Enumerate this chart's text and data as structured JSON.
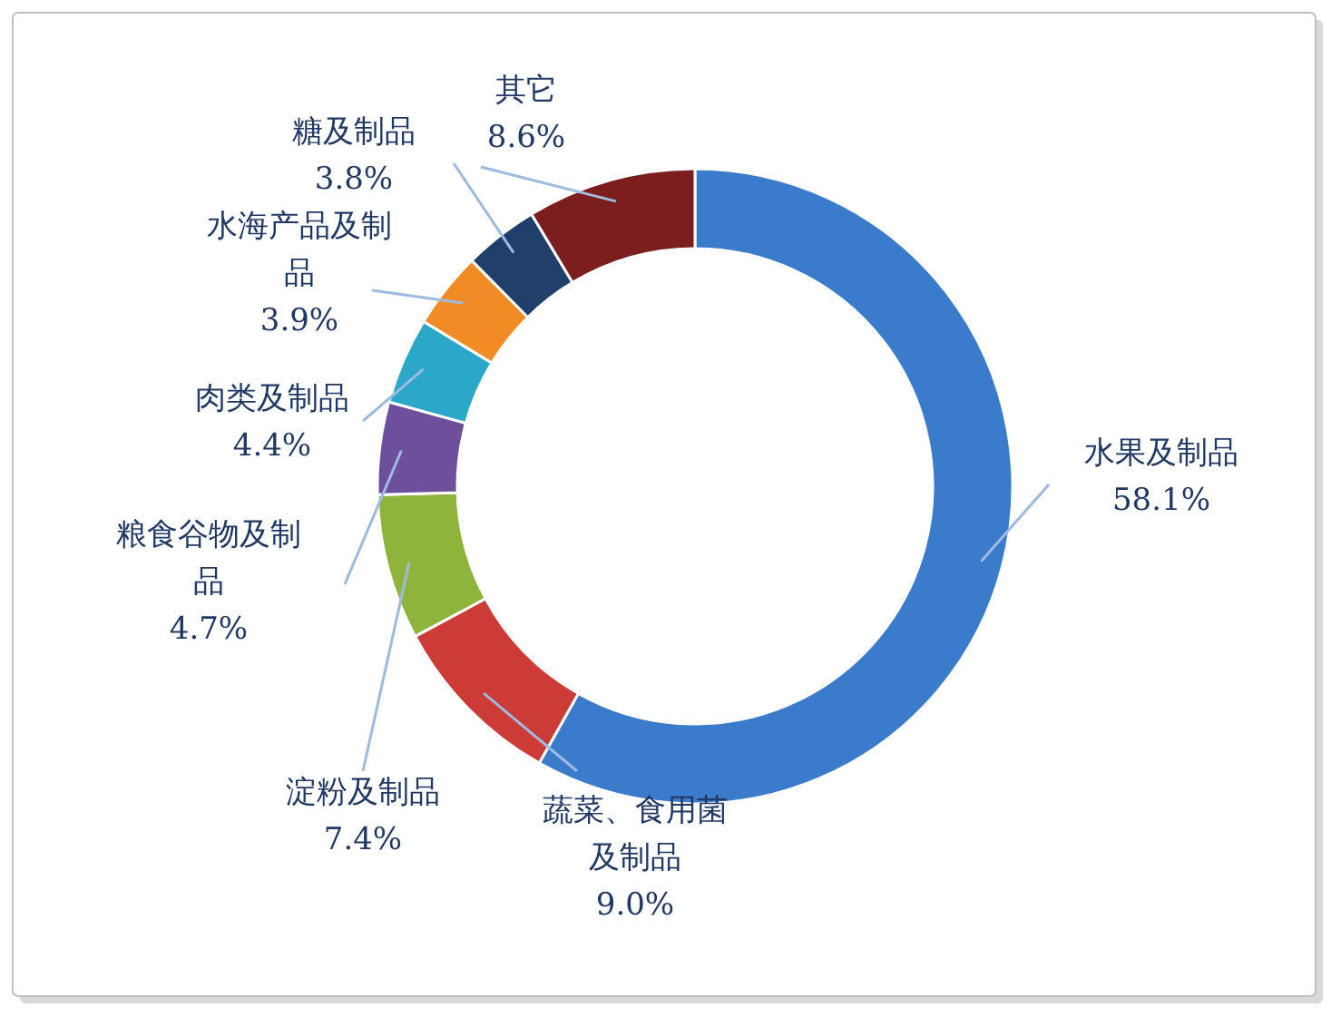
{
  "chart_data": {
    "type": "donut",
    "categories": [
      "水果及制品",
      "蔬菜、食用菌及制品",
      "淀粉及制品",
      "粮食谷物及制品",
      "肉类及制品",
      "水海产品及制品",
      "糖及制品",
      "其它"
    ],
    "values": [
      58.1,
      9.0,
      7.4,
      4.7,
      4.4,
      3.9,
      3.8,
      8.6
    ],
    "colors": [
      "#3b7bcc",
      "#cc3b36",
      "#8fb43c",
      "#6e4f9c",
      "#2ba7c9",
      "#f18b25",
      "#203f6b",
      "#7d1e1e"
    ],
    "value_labels": [
      "58.1%",
      "9.0%",
      "7.4%",
      "4.7%",
      "4.4%",
      "3.9%",
      "3.8%",
      "8.6%"
    ]
  }
}
